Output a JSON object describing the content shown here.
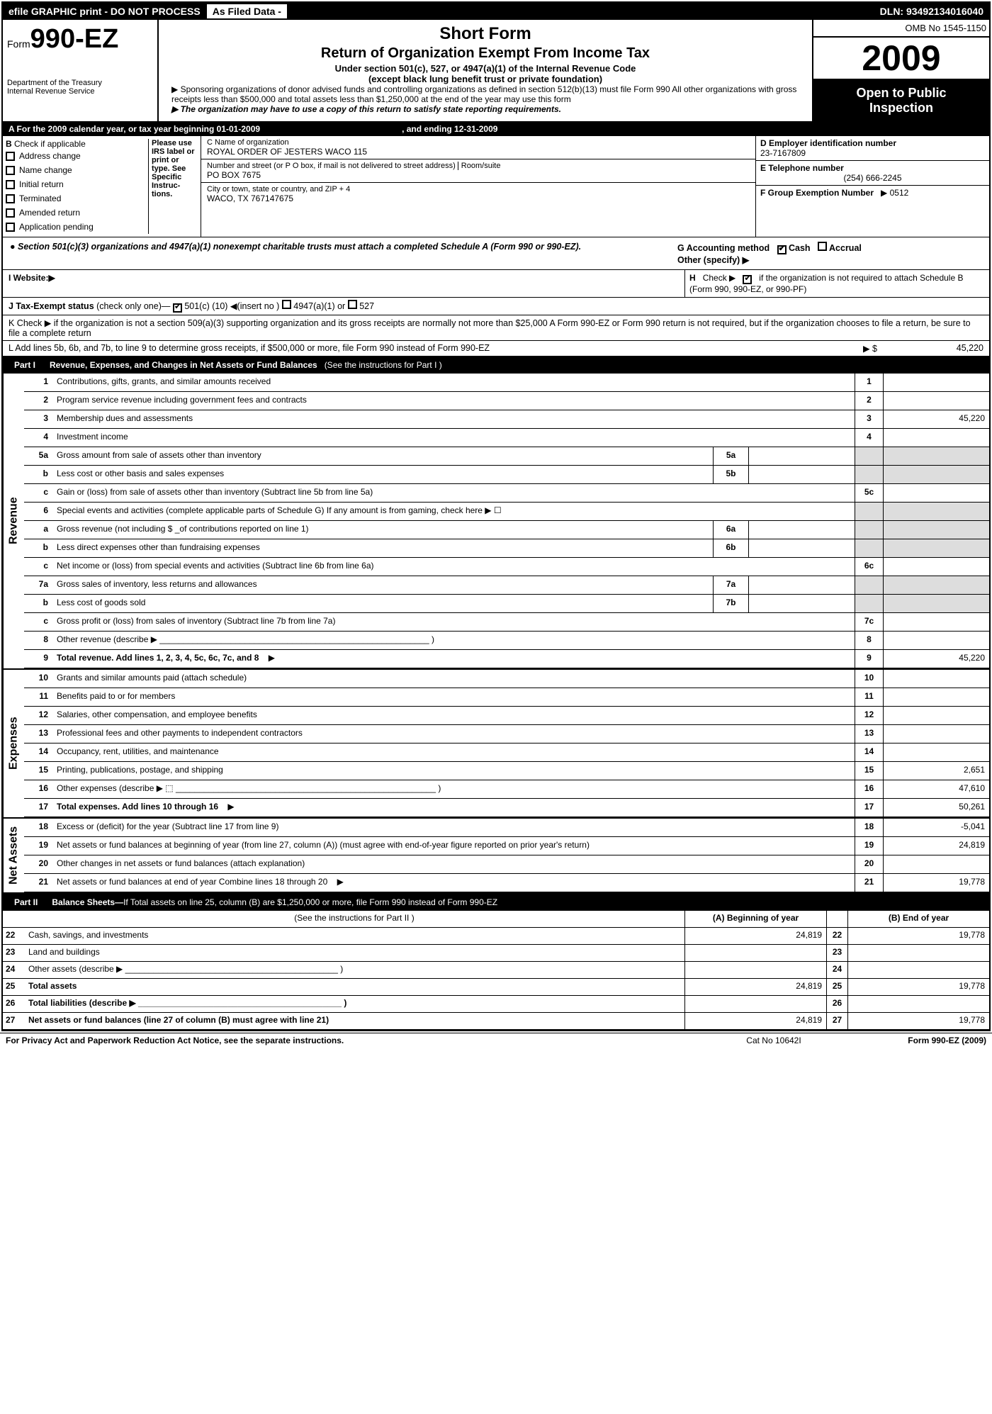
{
  "topbar": {
    "efile": "efile GRAPHIC print - DO NOT PROCESS",
    "asFiled": "As Filed Data -",
    "dln": "DLN: 93492134016040"
  },
  "header": {
    "formPrefix": "Form",
    "formNumber": "990-EZ",
    "dept1": "Department of the Treasury",
    "dept2": "Internal Revenue Service",
    "shortForm": "Short Form",
    "title": "Return of Organization Exempt From Income Tax",
    "sub1": "Under section 501(c), 527, or 4947(a)(1) of the Internal Revenue Code",
    "sub2": "(except black lung benefit trust or private foundation)",
    "note1": "▶ Sponsoring organizations of donor advised funds and controlling organizations as defined in section 512(b)(13) must file Form 990  All other organizations with gross receipts less than $500,000 and total assets less than $1,250,000 at the end of the year may use this form",
    "note2": "▶ The organization may have to use a copy of this return to satisfy state reporting requirements.",
    "omb": "OMB No  1545-1150",
    "year": "2009",
    "open": "Open to Public",
    "inspect": "Inspection"
  },
  "sectionA": {
    "text": "A  For the 2009 calendar year, or tax year beginning 01-01-2009",
    "ending": ", and ending 12-31-2009"
  },
  "boxB": {
    "title": "B",
    "check": "Check if applicable",
    "items": [
      "Address change",
      "Name change",
      "Initial return",
      "Terminated",
      "Amended return",
      "Application pending"
    ],
    "instr": "Please use IRS label or print or type. See Specific Instruc- tions."
  },
  "boxC": {
    "nameLabel": "C Name of organization",
    "name": "ROYAL ORDER OF JESTERS WACO 115",
    "streetLabel": "Number and street (or P O  box, if mail is not delivered to street address)",
    "roomLabel": "Room/suite",
    "street": "PO BOX 7675",
    "cityLabel": "City or town, state or country, and ZIP + 4",
    "city": "WACO, TX  767147675"
  },
  "boxD": {
    "label": "D Employer identification number",
    "value": "23-7167809"
  },
  "boxE": {
    "label": "E Telephone number",
    "value": "(254) 666-2245"
  },
  "boxF": {
    "label": "F Group Exemption Number",
    "value": "▶ 0512"
  },
  "boxG": {
    "label": "G Accounting method",
    "cash": "Cash",
    "accrual": "Accrual",
    "other": "Other (specify) ▶"
  },
  "boxH": {
    "label": "H",
    "text": "Check ▶",
    "text2": "if the organization is not required to attach Schedule B (Form 990, 990-EZ, or 990-PF)"
  },
  "sec501": {
    "bullet": "● Section 501(c)(3) organizations and 4947(a)(1) nonexempt charitable trusts must attach a completed Schedule A (Form 990 or 990-EZ)."
  },
  "website": {
    "label": "I Website:▶"
  },
  "taxExempt": {
    "label": "J Tax-Exempt status",
    "text": "(check only one)—",
    "opt1": "501(c) (10) ◀(insert no )",
    "opt2": "4947(a)(1) or",
    "opt3": "527"
  },
  "lineK": {
    "text": "K Check ▶        if the organization is not a section 509(a)(3) supporting organization and its gross receipts are normally not more than $25,000  A Form 990-EZ or Form 990 return is not required, but if the organization chooses to file a return, be sure to file a complete return"
  },
  "lineL": {
    "text": "L Add lines 5b, 6b, and 7b, to line 9 to determine gross receipts, if $500,000 or more, file Form 990 instead of Form 990-EZ",
    "arrow": "▶ $",
    "value": "45,220"
  },
  "part1": {
    "label": "Part I",
    "title": "Revenue, Expenses, and Changes in Net Assets or Fund Balances",
    "sub": "(See the instructions for Part I )"
  },
  "revenue": {
    "sideLabel": "Revenue",
    "rows": [
      {
        "n": "1",
        "d": "Contributions, gifts, grants, and similar amounts received",
        "en": "1",
        "ev": ""
      },
      {
        "n": "2",
        "d": "Program service revenue including government fees and contracts",
        "en": "2",
        "ev": ""
      },
      {
        "n": "3",
        "d": "Membership dues and assessments",
        "en": "3",
        "ev": "45,220"
      },
      {
        "n": "4",
        "d": "Investment income",
        "en": "4",
        "ev": ""
      },
      {
        "n": "5a",
        "d": "Gross amount from sale of assets other than inventory",
        "sb": "5a",
        "sv": ""
      },
      {
        "n": "b",
        "d": "Less  cost or other basis and sales expenses",
        "sb": "5b",
        "sv": ""
      },
      {
        "n": "c",
        "d": "Gain or (loss) from sale of assets other than inventory (Subtract line 5b from line 5a)",
        "en": "5c",
        "ev": ""
      },
      {
        "n": "6",
        "d": "Special events and activities (complete applicable parts of Schedule G)  If any amount is from gaming, check here ▶    ☐"
      },
      {
        "n": "a",
        "d": "Gross revenue (not including $ _of contributions reported on line 1)",
        "sb": "6a",
        "sv": ""
      },
      {
        "n": "b",
        "d": "Less  direct expenses other than fundraising expenses",
        "sb": "6b",
        "sv": ""
      },
      {
        "n": "c",
        "d": "Net income or (loss) from special events and activities (Subtract line 6b from line 6a)",
        "en": "6c",
        "ev": ""
      },
      {
        "n": "7a",
        "d": "Gross sales of inventory, less returns and allowances",
        "sb": "7a",
        "sv": ""
      },
      {
        "n": "b",
        "d": "Less  cost of goods sold",
        "sb": "7b",
        "sv": ""
      },
      {
        "n": "c",
        "d": "Gross profit or (loss) from sales of inventory (Subtract line 7b from line 7a)",
        "en": "7c",
        "ev": ""
      },
      {
        "n": "8",
        "d": "Other revenue (describe ▶ _________________________________________________________ )",
        "en": "8",
        "ev": ""
      },
      {
        "n": "9",
        "d": "Total revenue. Add lines 1, 2, 3, 4, 5c, 6c, 7c, and 8",
        "en": "9",
        "ev": "45,220",
        "bold": true,
        "arrow": true
      }
    ]
  },
  "expenses": {
    "sideLabel": "Expenses",
    "rows": [
      {
        "n": "10",
        "d": "Grants and similar amounts paid (attach schedule)",
        "en": "10",
        "ev": ""
      },
      {
        "n": "11",
        "d": "Benefits paid to or for members",
        "en": "11",
        "ev": ""
      },
      {
        "n": "12",
        "d": "Salaries, other compensation, and employee benefits",
        "en": "12",
        "ev": ""
      },
      {
        "n": "13",
        "d": "Professional fees and other payments to independent contractors",
        "en": "13",
        "ev": ""
      },
      {
        "n": "14",
        "d": "Occupancy, rent, utilities, and maintenance",
        "en": "14",
        "ev": ""
      },
      {
        "n": "15",
        "d": "Printing, publications, postage, and shipping",
        "en": "15",
        "ev": "2,651"
      },
      {
        "n": "16",
        "d": "Other expenses (describe ▶ ⬚ _______________________________________________________ )",
        "en": "16",
        "ev": "47,610"
      },
      {
        "n": "17",
        "d": "Total expenses. Add lines 10 through 16",
        "en": "17",
        "ev": "50,261",
        "bold": true,
        "arrow": true
      }
    ]
  },
  "netassets": {
    "sideLabel": "Net Assets",
    "rows": [
      {
        "n": "18",
        "d": "Excess or (deficit) for the year (Subtract line 17 from line 9)",
        "en": "18",
        "ev": "-5,041"
      },
      {
        "n": "19",
        "d": "Net assets or fund balances at beginning of year (from line 27, column (A)) (must agree with end-of-year figure reported on prior year's return)",
        "en": "19",
        "ev": "24,819"
      },
      {
        "n": "20",
        "d": "Other changes in net assets or fund balances (attach explanation)",
        "en": "20",
        "ev": ""
      },
      {
        "n": "21",
        "d": "Net assets or fund balances at end of year  Combine lines 18 through 20",
        "en": "21",
        "ev": "19,778",
        "arrow": true
      }
    ]
  },
  "part2": {
    "label": "Part II",
    "title": "Balance Sheets—",
    "sub": "If Total assets on line 25, column (B) are $1,250,000 or more, file Form 990 instead of Form 990-EZ",
    "instr": "(See the instructions for Part II )",
    "colA": "(A) Beginning of year",
    "colB": "(B) End of year"
  },
  "balance": [
    {
      "n": "22",
      "d": "Cash, savings, and investments",
      "a": "24,819",
      "m": "22",
      "b": "19,778"
    },
    {
      "n": "23",
      "d": "Land and buildings",
      "a": "",
      "m": "23",
      "b": ""
    },
    {
      "n": "24",
      "d": "Other assets (describe ▶ _____________________________________________ )",
      "a": "",
      "m": "24",
      "b": ""
    },
    {
      "n": "25",
      "d": "Total assets",
      "a": "24,819",
      "m": "25",
      "b": "19,778",
      "bold": true
    },
    {
      "n": "26",
      "d": "Total liabilities (describe ▶ ___________________________________________ )",
      "a": "",
      "m": "26",
      "b": "",
      "bold": true
    },
    {
      "n": "27",
      "d": "Net assets or fund balances (line 27 of column (B) must agree with line 21)",
      "a": "24,819",
      "m": "27",
      "b": "19,778",
      "bold": true
    }
  ],
  "footer": {
    "left": "For Privacy Act and Paperwork Reduction Act Notice, see the separate instructions.",
    "mid": "Cat No  10642I",
    "right": "Form 990-EZ (2009)"
  }
}
